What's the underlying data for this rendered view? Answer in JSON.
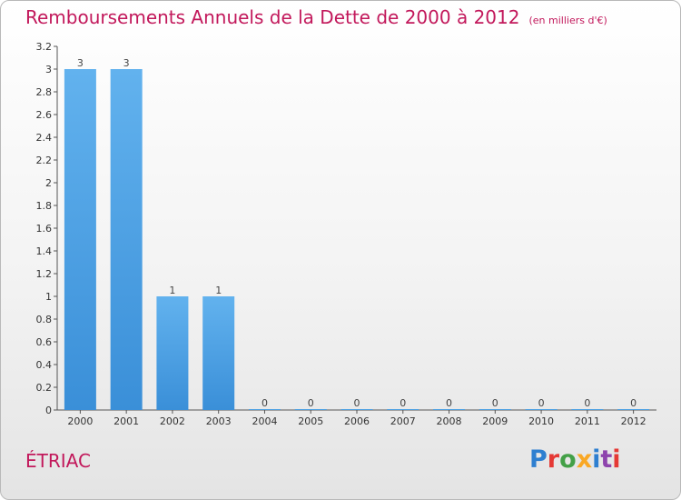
{
  "title": "Remboursements Annuels de la Dette de 2000 à 2012",
  "unit": "(en milliers d'€)",
  "commune": "ÉTRIAC",
  "logo": {
    "letters": [
      "P",
      "r",
      "o",
      "x",
      "i",
      "t",
      "i"
    ],
    "colors": [
      "#2e7fd0",
      "#e53935",
      "#43a047",
      "#f9a825",
      "#2e7fd0",
      "#8e44ad",
      "#e53935"
    ]
  },
  "colors": {
    "bar": "#3a8fd8",
    "bar_light": "#62b2ee",
    "title": "#c2185b"
  },
  "chart_data": {
    "type": "bar",
    "categories": [
      "2000",
      "2001",
      "2002",
      "2003",
      "2004",
      "2005",
      "2006",
      "2007",
      "2008",
      "2009",
      "2010",
      "2011",
      "2012"
    ],
    "values": [
      3,
      3,
      1,
      1,
      0,
      0,
      0,
      0,
      0,
      0,
      0,
      0,
      0
    ],
    "value_labels": [
      "3",
      "3",
      "1",
      "1",
      "0",
      "0",
      "0",
      "0",
      "0",
      "0",
      "0",
      "0",
      "0"
    ],
    "ylim": [
      0,
      3.2
    ],
    "yticks": [
      0,
      0.2,
      0.4,
      0.6,
      0.8,
      1,
      1.2,
      1.4,
      1.6,
      1.8,
      2,
      2.2,
      2.4,
      2.6,
      2.8,
      3,
      3.2
    ],
    "ytick_labels": [
      "0",
      "0.2",
      "0.4",
      "0.6",
      "0.8",
      "1",
      "1.2",
      "1.4",
      "1.6",
      "1.8",
      "2",
      "2.2",
      "2.4",
      "2.6",
      "2.8",
      "3",
      "3.2"
    ],
    "grid": false,
    "xlabel": "",
    "ylabel": ""
  }
}
